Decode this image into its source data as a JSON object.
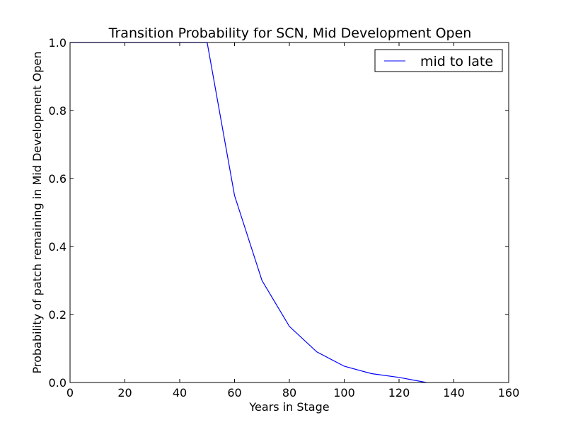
{
  "chart_data": {
    "type": "line",
    "title": "Transition Probability for SCN, Mid Development Open",
    "xlabel": "Years in Stage",
    "ylabel": "Probability of patch remaining in Mid Development Open",
    "xlim": [
      0,
      160
    ],
    "ylim": [
      0,
      1.0
    ],
    "x_ticks": [
      "0",
      "20",
      "40",
      "60",
      "80",
      "100",
      "120",
      "140",
      "160"
    ],
    "y_ticks": [
      "0.0",
      "0.2",
      "0.4",
      "0.6",
      "0.8",
      "1.0"
    ],
    "grid": false,
    "legend_position": "top-right",
    "series": [
      {
        "name": "mid to late",
        "color": "#0000ff",
        "x": [
          0,
          10,
          20,
          30,
          40,
          50,
          60,
          70,
          80,
          90,
          100,
          110,
          120,
          130
        ],
        "y": [
          1.0,
          1.0,
          1.0,
          1.0,
          1.0,
          1.0,
          0.55,
          0.3,
          0.165,
          0.09,
          0.048,
          0.026,
          0.015,
          0.0
        ]
      }
    ]
  }
}
